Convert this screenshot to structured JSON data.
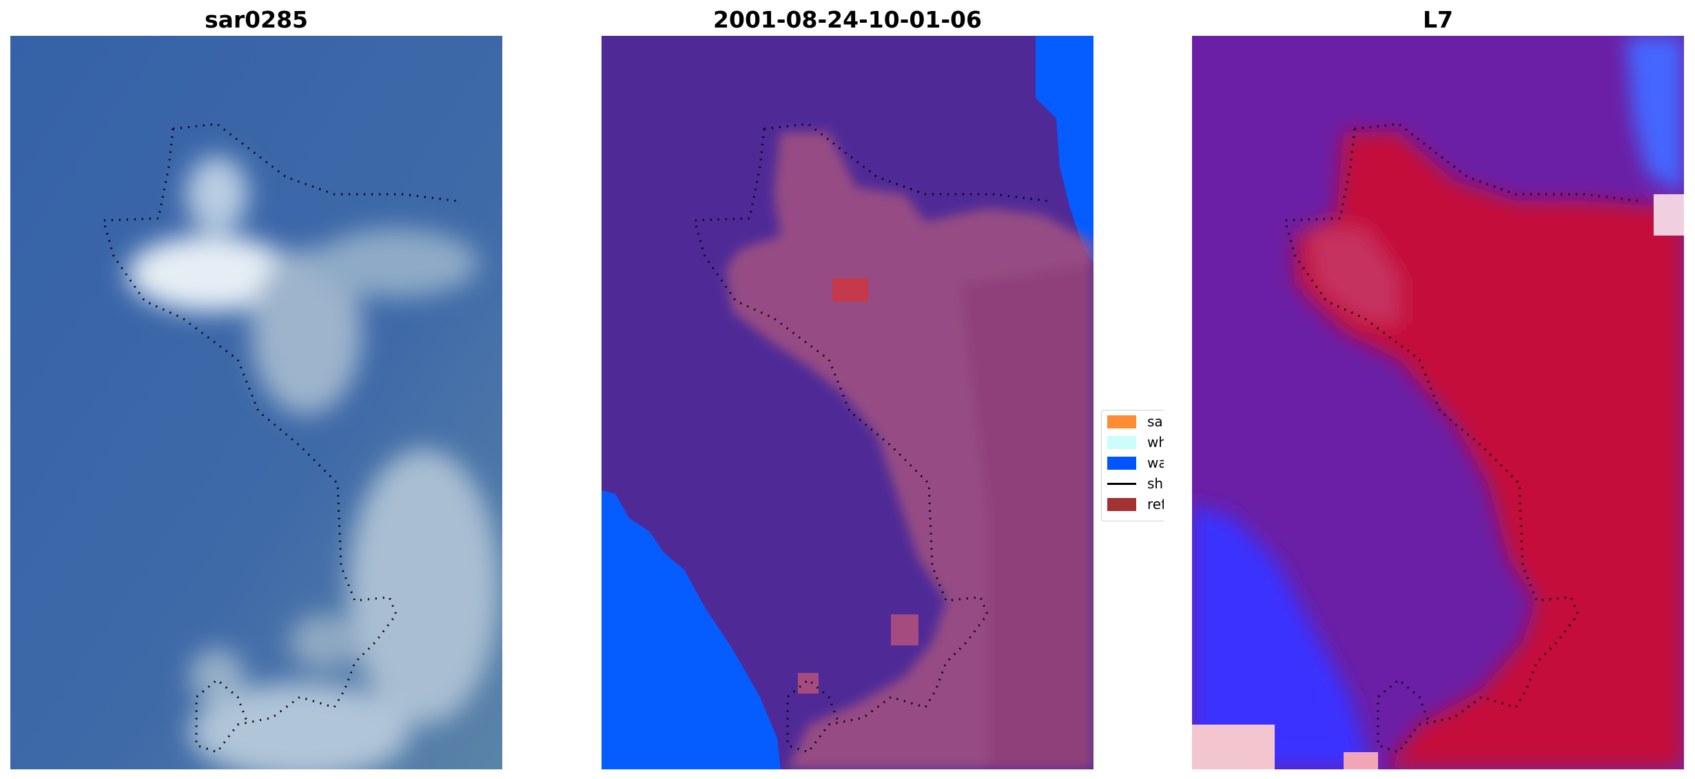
{
  "panels": [
    {
      "title": "sar0285"
    },
    {
      "title": "2001-08-24-10-01-06"
    },
    {
      "title": "L7"
    }
  ],
  "legend": {
    "items": [
      {
        "label": "sand",
        "color": "#ff8c33",
        "kind": "patch"
      },
      {
        "label": "whitewater",
        "color": "#ccfdfd",
        "kind": "patch"
      },
      {
        "label": "water",
        "color": "#0055ff",
        "kind": "patch"
      },
      {
        "label": "shoreline",
        "color": "#000000",
        "kind": "line"
      },
      {
        "label": "reference shoreline",
        "color": "#a33232",
        "kind": "patch"
      }
    ]
  },
  "colors": {
    "rgb_water": "#3a62a8",
    "classified_background": "#4f2a97",
    "classified_sand_overlay": "#a2527f",
    "classified_water": "#055cff",
    "index_land": "#c4103b",
    "index_water_low": "#6b1fa6",
    "index_water_high": "#3030ff"
  }
}
